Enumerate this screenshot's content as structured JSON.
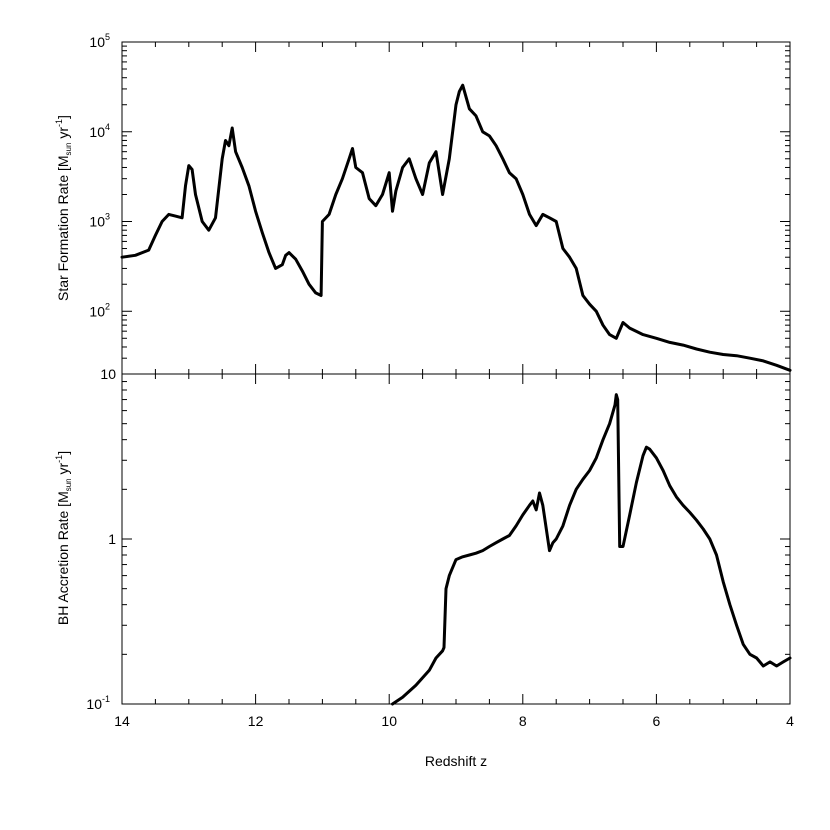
{
  "chart_data": [
    {
      "type": "line",
      "panel": "top",
      "ylabel": "Star Formation Rate [M_sun yr^-1]",
      "ylabel_parts": {
        "main": "Star Formation Rate [M",
        "sub": "sun",
        "mid": " yr",
        "sup": "-1",
        "end": "]"
      },
      "yscale": "log",
      "ylim": [
        20,
        100000
      ],
      "xlim": [
        14,
        4
      ],
      "yticks": [
        {
          "value": 100,
          "base": "10",
          "exp": "2"
        },
        {
          "value": 1000,
          "base": "10",
          "exp": "3"
        },
        {
          "value": 10000,
          "base": "10",
          "exp": "4"
        },
        {
          "value": 100000,
          "base": "10",
          "exp": "5"
        }
      ],
      "x": [
        14.0,
        13.8,
        13.6,
        13.5,
        13.4,
        13.3,
        13.2,
        13.1,
        13.05,
        13.0,
        12.95,
        12.9,
        12.8,
        12.7,
        12.6,
        12.5,
        12.45,
        12.4,
        12.35,
        12.3,
        12.2,
        12.1,
        12.0,
        11.9,
        11.8,
        11.7,
        11.6,
        11.55,
        11.5,
        11.4,
        11.3,
        11.2,
        11.1,
        11.02,
        11.0,
        10.9,
        10.8,
        10.7,
        10.6,
        10.55,
        10.5,
        10.4,
        10.3,
        10.2,
        10.1,
        10.0,
        9.95,
        9.9,
        9.8,
        9.7,
        9.6,
        9.5,
        9.4,
        9.3,
        9.2,
        9.1,
        9.0,
        8.95,
        8.9,
        8.8,
        8.7,
        8.6,
        8.5,
        8.4,
        8.3,
        8.2,
        8.1,
        8.0,
        7.9,
        7.8,
        7.7,
        7.6,
        7.5,
        7.4,
        7.3,
        7.2,
        7.1,
        7.0,
        6.9,
        6.8,
        6.7,
        6.6,
        6.5,
        6.4,
        6.2,
        6.0,
        5.8,
        5.6,
        5.4,
        5.2,
        5.0,
        4.8,
        4.6,
        4.4,
        4.2,
        4.0
      ],
      "y": [
        400,
        420,
        480,
        700,
        1000,
        1200,
        1150,
        1100,
        2500,
        4200,
        3800,
        2000,
        1000,
        800,
        1100,
        5000,
        8000,
        7000,
        11000,
        6000,
        4000,
        2500,
        1300,
        750,
        450,
        300,
        330,
        420,
        450,
        380,
        280,
        200,
        160,
        150,
        1000,
        1200,
        2000,
        3000,
        5000,
        6500,
        4000,
        3500,
        1800,
        1500,
        2000,
        3500,
        1300,
        2200,
        4000,
        5000,
        3000,
        2000,
        4500,
        6000,
        2000,
        5000,
        20000,
        28000,
        33000,
        18000,
        15000,
        10000,
        9000,
        7000,
        5000,
        3500,
        3000,
        2000,
        1200,
        900,
        1200,
        1100,
        1000,
        500,
        400,
        300,
        150,
        120,
        100,
        70,
        55,
        50,
        75,
        65,
        55,
        50,
        45,
        42,
        38,
        35,
        33,
        32,
        30,
        28,
        25,
        22
      ]
    },
    {
      "type": "line",
      "panel": "bottom",
      "xlabel": "Redshift z",
      "ylabel": "BH Accretion Rate [M_sun yr^-1]",
      "ylabel_parts": {
        "main": "BH Accretion Rate [M",
        "sub": "sun",
        "mid": " yr",
        "sup": "-1",
        "end": "]"
      },
      "yscale": "log",
      "ylim": [
        0.1,
        10
      ],
      "xlim": [
        14,
        4
      ],
      "xticks": [
        14,
        12,
        10,
        8,
        6,
        4
      ],
      "yticks": [
        {
          "value": 0.1,
          "base": "10",
          "exp": "-1"
        },
        {
          "value": 1,
          "base": "1",
          "exp": ""
        },
        {
          "value": 10,
          "base": "10",
          "exp": ""
        }
      ],
      "x": [
        9.95,
        9.8,
        9.6,
        9.4,
        9.3,
        9.2,
        9.18,
        9.15,
        9.1,
        9.0,
        8.9,
        8.8,
        8.7,
        8.6,
        8.5,
        8.4,
        8.3,
        8.2,
        8.1,
        8.0,
        7.9,
        7.85,
        7.8,
        7.75,
        7.7,
        7.6,
        7.55,
        7.5,
        7.4,
        7.3,
        7.2,
        7.1,
        7.0,
        6.9,
        6.8,
        6.7,
        6.62,
        6.6,
        6.58,
        6.55,
        6.5,
        6.4,
        6.3,
        6.2,
        6.15,
        6.1,
        6.0,
        5.9,
        5.8,
        5.7,
        5.6,
        5.5,
        5.4,
        5.3,
        5.2,
        5.1,
        5.0,
        4.9,
        4.8,
        4.7,
        4.6,
        4.5,
        4.4,
        4.3,
        4.2,
        4.1,
        4.0
      ],
      "y": [
        0.1,
        0.11,
        0.13,
        0.16,
        0.19,
        0.21,
        0.22,
        0.5,
        0.6,
        0.75,
        0.78,
        0.8,
        0.82,
        0.85,
        0.9,
        0.95,
        1.0,
        1.05,
        1.2,
        1.4,
        1.6,
        1.7,
        1.5,
        1.9,
        1.6,
        0.85,
        0.95,
        1.0,
        1.2,
        1.6,
        2.0,
        2.3,
        2.6,
        3.1,
        4.0,
        5.0,
        6.5,
        7.5,
        7.0,
        0.9,
        0.9,
        1.4,
        2.2,
        3.2,
        3.6,
        3.5,
        3.1,
        2.6,
        2.1,
        1.8,
        1.6,
        1.45,
        1.3,
        1.15,
        1.0,
        0.8,
        0.55,
        0.4,
        0.3,
        0.23,
        0.2,
        0.19,
        0.17,
        0.18,
        0.17,
        0.18,
        0.19
      ]
    }
  ]
}
